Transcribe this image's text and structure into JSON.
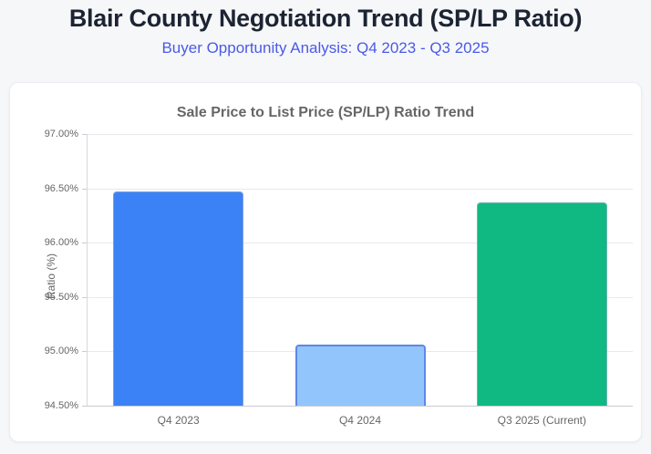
{
  "page": {
    "title": "Blair County Negotiation Trend (SP/LP Ratio)",
    "subtitle": "Buyer Opportunity Analysis: Q4 2023 - Q3 2025"
  },
  "colors": {
    "page_background": "#f6f7f9",
    "card_background": "#ffffff",
    "title_text": "#1c2433",
    "subtitle_text": "#4a5ae8",
    "chart_title_text": "#666666",
    "axis_text": "#666666",
    "gridline": "#e7e9ec"
  },
  "chart_data": {
    "type": "bar",
    "title": "Sale Price to List Price (SP/LP) Ratio Trend",
    "categories": [
      "Q4 2023",
      "Q4 2024",
      "Q3 2025 (Current)"
    ],
    "values": [
      96.47,
      95.06,
      96.37
    ],
    "value_unit": "%",
    "xlabel": "",
    "ylabel": "Ratio (%)",
    "ylim": [
      94.5,
      97.0
    ],
    "ytick_values": [
      97.0,
      96.5,
      96.0,
      95.5,
      95.0,
      94.5
    ],
    "ytick_labels": [
      "97.00%",
      "96.50%",
      "96.00%",
      "95.50%",
      "95.00%",
      "94.50%"
    ],
    "grid": true,
    "legend": false,
    "bar_colors": [
      "#3b82f6",
      "#93c5fd",
      "#10b981"
    ],
    "bar_border_colors": [
      "rgba(160,180,205,0.65)",
      "#5f87e6",
      "rgba(160,180,205,0.65)"
    ],
    "bar_border_widths": [
      1,
      2,
      1
    ]
  }
}
